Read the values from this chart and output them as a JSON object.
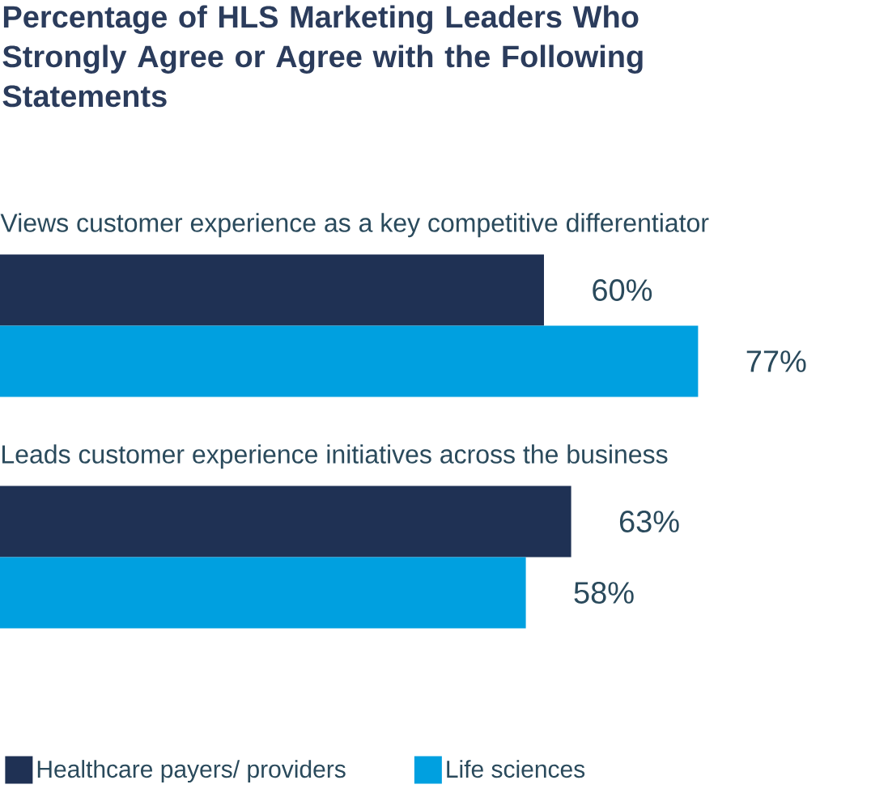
{
  "chart_data": {
    "type": "bar",
    "orientation": "horizontal",
    "title": "Percentage of HLS Marketing Leaders Who Strongly Agree or Agree with the Following Statements",
    "categories": [
      "Views customer experience as a key competitive differentiator",
      "Leads customer experience initiatives across the business"
    ],
    "series": [
      {
        "name": "Healthcare payers/ providers",
        "color": "#1f3154",
        "values": [
          60,
          63
        ],
        "value_labels": [
          "60%",
          "63%"
        ]
      },
      {
        "name": "Life sciences",
        "color": "#00a0e0",
        "values": [
          77,
          58
        ],
        "value_labels": [
          "77%",
          "58%"
        ]
      }
    ],
    "legend": "bottom left"
  }
}
